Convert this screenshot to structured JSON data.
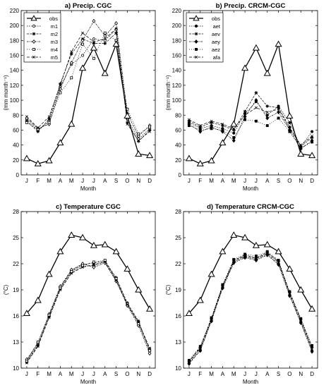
{
  "chart_data": [
    {
      "type": "line",
      "title": "a) Precip. CGC",
      "xlabel": "Month",
      "ylabel": "(mm month⁻¹)",
      "categories": [
        "J",
        "F",
        "M",
        "A",
        "M",
        "J",
        "J",
        "A",
        "S",
        "O",
        "N",
        "D"
      ],
      "ylim": [
        0,
        220
      ],
      "yticks": [
        0,
        20,
        40,
        60,
        80,
        100,
        120,
        140,
        160,
        180,
        200,
        220
      ],
      "grid": false,
      "legend": "top-left",
      "series": [
        {
          "name": "obs",
          "marker": "triangle",
          "values": [
            22,
            15,
            19,
            43,
            68,
            143,
            170,
            136,
            175,
            79,
            28,
            26
          ]
        },
        {
          "name": "m1",
          "marker": "circle",
          "values": [
            74,
            60,
            72,
            118,
            148,
            160,
            182,
            180,
            195,
            75,
            48,
            62
          ]
        },
        {
          "name": "m2",
          "marker": "star",
          "values": [
            72,
            58,
            75,
            122,
            162,
            182,
            176,
            176,
            190,
            70,
            45,
            60
          ]
        },
        {
          "name": "m3",
          "marker": "diamond",
          "values": [
            76,
            62,
            68,
            115,
            150,
            180,
            206,
            186,
            203,
            82,
            52,
            66
          ]
        },
        {
          "name": "m4",
          "marker": "square",
          "values": [
            70,
            61,
            70,
            110,
            130,
            175,
            156,
            190,
            180,
            88,
            55,
            64
          ]
        },
        {
          "name": "m5",
          "marker": "x",
          "values": [
            78,
            63,
            78,
            120,
            165,
            190,
            178,
            182,
            196,
            68,
            46,
            58
          ]
        }
      ]
    },
    {
      "type": "line",
      "title": "b) Precip. CRCM-CGC",
      "xlabel": "Month",
      "ylabel": "(mm month⁻¹)",
      "categories": [
        "J",
        "F",
        "M",
        "A",
        "M",
        "J",
        "J",
        "A",
        "S",
        "O",
        "N",
        "D"
      ],
      "ylim": [
        0,
        220
      ],
      "yticks": [
        0,
        20,
        40,
        60,
        80,
        100,
        120,
        140,
        160,
        180,
        200,
        220
      ],
      "grid": false,
      "legend": "top-left",
      "series": [
        {
          "name": "obs",
          "marker": "triangle",
          "values": [
            22,
            15,
            19,
            43,
            68,
            143,
            170,
            136,
            175,
            79,
            28,
            26
          ]
        },
        {
          "name": "aet",
          "marker": "circle",
          "values": [
            70,
            62,
            66,
            62,
            56,
            82,
            98,
            80,
            92,
            70,
            38,
            58
          ]
        },
        {
          "name": "aev",
          "marker": "star",
          "values": [
            72,
            64,
            70,
            66,
            60,
            85,
            110,
            92,
            90,
            64,
            38,
            50
          ]
        },
        {
          "name": "aey",
          "marker": "diamond",
          "values": [
            68,
            58,
            64,
            58,
            46,
            78,
            100,
            76,
            84,
            60,
            35,
            46
          ]
        },
        {
          "name": "aez",
          "marker": "square",
          "values": [
            66,
            60,
            62,
            60,
            50,
            74,
            72,
            66,
            76,
            58,
            36,
            44
          ]
        },
        {
          "name": "afa",
          "marker": "x",
          "values": [
            74,
            66,
            72,
            68,
            62,
            80,
            90,
            84,
            88,
            62,
            40,
            52
          ]
        }
      ]
    },
    {
      "type": "line",
      "title": "c) Temperature CGC",
      "xlabel": "Month",
      "ylabel": "(°C)",
      "categories": [
        "J",
        "F",
        "M",
        "A",
        "M",
        "J",
        "J",
        "A",
        "S",
        "O",
        "N",
        "D"
      ],
      "ylim": [
        10,
        28
      ],
      "yticks": [
        10,
        13,
        16,
        19,
        22,
        25,
        28
      ],
      "grid": false,
      "series": [
        {
          "name": "obs",
          "marker": "triangle",
          "values": [
            16.3,
            17.8,
            20.8,
            23.4,
            25.3,
            25.0,
            24.1,
            24.2,
            23.4,
            21.4,
            19.0,
            16.8
          ]
        },
        {
          "name": "m1",
          "marker": "circle",
          "values": [
            10.9,
            12.7,
            15.9,
            19.1,
            21.0,
            21.7,
            21.8,
            22.2,
            20.2,
            17.3,
            15.2,
            12.2
          ]
        },
        {
          "name": "m2",
          "marker": "star",
          "values": [
            10.7,
            12.6,
            16.0,
            19.3,
            21.2,
            21.9,
            22.1,
            22.3,
            20.4,
            17.5,
            15.4,
            12.0
          ]
        },
        {
          "name": "m3",
          "marker": "diamond",
          "values": [
            11.0,
            12.9,
            16.2,
            19.4,
            21.3,
            22.0,
            21.6,
            22.1,
            20.0,
            17.2,
            14.9,
            11.7
          ]
        },
        {
          "name": "m4",
          "marker": "square",
          "values": [
            10.8,
            13.0,
            16.1,
            19.2,
            21.1,
            21.8,
            22.2,
            22.4,
            20.3,
            17.4,
            15.1,
            12.0
          ]
        },
        {
          "name": "m5",
          "marker": "x",
          "values": [
            10.6,
            12.5,
            15.8,
            19.0,
            20.9,
            21.6,
            21.9,
            22.2,
            20.1,
            17.3,
            15.3,
            12.3
          ]
        }
      ]
    },
    {
      "type": "line",
      "title": "d) Temperature CRCM-CGC",
      "xlabel": "Month",
      "ylabel": "(°C)",
      "categories": [
        "J",
        "F",
        "M",
        "A",
        "M",
        "J",
        "J",
        "A",
        "S",
        "O",
        "N",
        "D"
      ],
      "ylim": [
        10,
        28
      ],
      "yticks": [
        10,
        13,
        16,
        19,
        22,
        25,
        28
      ],
      "grid": false,
      "series": [
        {
          "name": "obs",
          "marker": "triangle",
          "values": [
            16.3,
            17.8,
            20.8,
            23.4,
            25.3,
            25.0,
            24.1,
            24.2,
            23.4,
            21.4,
            19.0,
            16.8
          ]
        },
        {
          "name": "aet",
          "marker": "circle",
          "values": [
            10.6,
            12.1,
            15.5,
            19.3,
            22.2,
            22.8,
            22.5,
            23.1,
            22.0,
            18.4,
            15.3,
            12.0
          ]
        },
        {
          "name": "aev",
          "marker": "star",
          "values": [
            10.8,
            12.4,
            15.7,
            19.5,
            22.4,
            23.0,
            22.7,
            23.3,
            22.3,
            18.7,
            15.6,
            12.4
          ]
        },
        {
          "name": "aey",
          "marker": "diamond",
          "values": [
            10.5,
            12.0,
            15.4,
            19.2,
            22.1,
            22.7,
            22.4,
            23.0,
            21.9,
            18.3,
            15.2,
            11.9
          ]
        },
        {
          "name": "aez",
          "marker": "square",
          "values": [
            10.9,
            12.5,
            15.8,
            19.6,
            22.5,
            23.1,
            22.9,
            23.4,
            22.4,
            18.8,
            15.7,
            12.6
          ]
        },
        {
          "name": "afa",
          "marker": "x",
          "values": [
            10.7,
            12.3,
            15.6,
            19.4,
            22.3,
            22.9,
            22.6,
            23.2,
            22.2,
            18.6,
            15.5,
            12.2
          ]
        }
      ]
    }
  ]
}
